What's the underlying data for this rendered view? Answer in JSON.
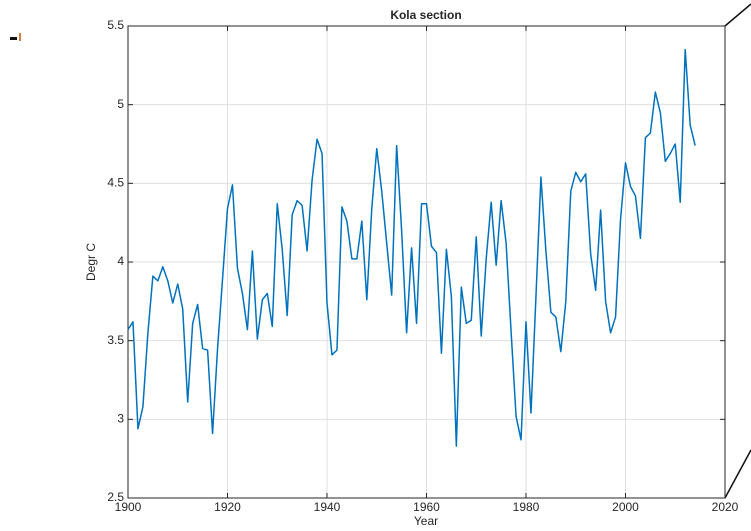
{
  "chart_data": {
    "type": "line",
    "title": "Kola section",
    "xlabel": "Year",
    "ylabel": "Degr C",
    "x": [
      1900,
      1901,
      1902,
      1903,
      1904,
      1905,
      1906,
      1907,
      1908,
      1909,
      1910,
      1911,
      1912,
      1913,
      1914,
      1915,
      1916,
      1917,
      1918,
      1919,
      1920,
      1921,
      1922,
      1923,
      1924,
      1925,
      1926,
      1927,
      1928,
      1929,
      1930,
      1931,
      1932,
      1933,
      1934,
      1935,
      1936,
      1937,
      1938,
      1939,
      1940,
      1941,
      1942,
      1943,
      1944,
      1945,
      1946,
      1947,
      1948,
      1949,
      1950,
      1951,
      1952,
      1953,
      1954,
      1955,
      1956,
      1957,
      1958,
      1959,
      1960,
      1961,
      1962,
      1963,
      1964,
      1965,
      1966,
      1967,
      1968,
      1969,
      1970,
      1971,
      1972,
      1973,
      1974,
      1975,
      1976,
      1977,
      1978,
      1979,
      1980,
      1981,
      1982,
      1983,
      1984,
      1985,
      1986,
      1987,
      1988,
      1989,
      1990,
      1991,
      1992,
      1993,
      1994,
      1995,
      1996,
      1997,
      1998,
      1999,
      2000,
      2001,
      2002,
      2003,
      2004,
      2005,
      2006,
      2007,
      2008,
      2009,
      2010,
      2011,
      2012,
      2013,
      2014
    ],
    "series": [
      {
        "color": "#0072bd",
        "values": [
          3.57,
          3.62,
          2.94,
          3.08,
          3.55,
          3.91,
          3.88,
          3.97,
          3.88,
          3.74,
          3.86,
          3.7,
          3.11,
          3.61,
          3.73,
          3.45,
          3.44,
          2.91,
          3.45,
          3.89,
          4.34,
          4.49,
          3.96,
          3.8,
          3.57,
          4.07,
          3.51,
          3.76,
          3.8,
          3.59,
          4.37,
          4.08,
          3.66,
          4.3,
          4.39,
          4.36,
          4.07,
          4.52,
          4.78,
          4.69,
          3.74,
          3.41,
          3.44,
          4.35,
          4.26,
          4.02,
          4.02,
          4.26,
          3.76,
          4.34,
          4.72,
          4.45,
          4.12,
          3.79,
          4.74,
          4.2,
          3.55,
          4.09,
          3.61,
          4.37,
          4.37,
          4.1,
          4.06,
          3.42,
          4.08,
          3.78,
          2.83,
          3.84,
          3.61,
          3.63,
          4.16,
          3.53,
          4.02,
          4.38,
          3.98,
          4.39,
          4.12,
          3.56,
          3.02,
          2.87,
          3.62,
          3.04,
          3.78,
          4.54,
          4.07,
          3.68,
          3.65,
          3.43,
          3.75,
          4.45,
          4.57,
          4.51,
          4.56,
          4.05,
          3.82,
          4.33,
          3.75,
          3.55,
          3.65,
          4.27,
          4.63,
          4.48,
          4.42,
          4.15,
          4.79,
          4.82,
          5.08,
          4.95,
          4.64,
          4.69,
          4.75,
          4.38,
          5.35,
          4.87,
          4.74
        ]
      }
    ],
    "xlim": [
      1900,
      2020
    ],
    "xticks": [
      1900,
      1920,
      1940,
      1960,
      1980,
      2000,
      2020
    ],
    "ylim": [
      2.5,
      5.5
    ],
    "yticks": [
      2.5,
      3,
      3.5,
      4,
      4.5,
      5,
      5.5
    ],
    "grid": true
  }
}
